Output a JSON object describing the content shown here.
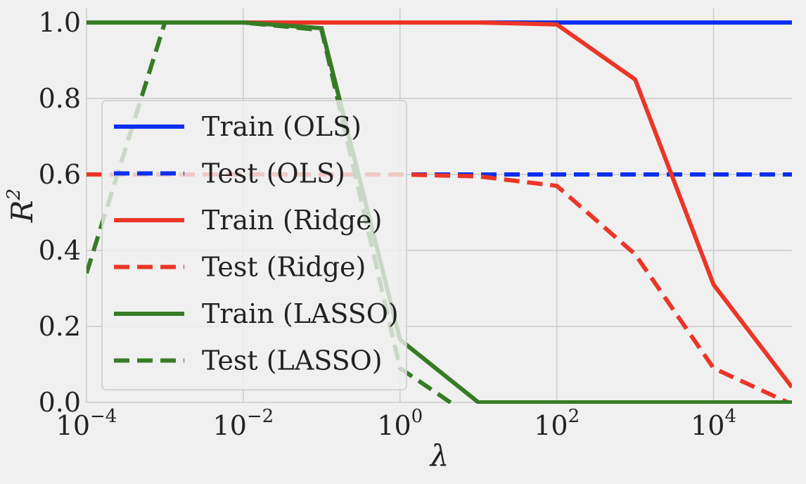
{
  "colors": {
    "background": "#f0f0f0",
    "grid": "#cbcbcb",
    "legend_bg": "#f0f0f0",
    "legend_border": "#cccccc"
  },
  "chart_data": {
    "type": "line",
    "xscale": "log",
    "xlabel": "λ",
    "ylabel": "R",
    "ylabel_superscript": "2",
    "xlim": [
      0.0001,
      100000
    ],
    "ylim": [
      0.0,
      1.0
    ],
    "grid": true,
    "legend_position": "center-left",
    "x_ticks": [
      {
        "value": 0.0001,
        "base": "10",
        "exp": "−4"
      },
      {
        "value": 0.01,
        "base": "10",
        "exp": "−2"
      },
      {
        "value": 1,
        "base": "10",
        "exp": "0"
      },
      {
        "value": 100,
        "base": "10",
        "exp": "2"
      },
      {
        "value": 10000,
        "base": "10",
        "exp": "4"
      }
    ],
    "y_ticks": [
      {
        "value": 0.0,
        "label": "0.0"
      },
      {
        "value": 0.2,
        "label": "0.2"
      },
      {
        "value": 0.4,
        "label": "0.4"
      },
      {
        "value": 0.6,
        "label": "0.6"
      },
      {
        "value": 0.8,
        "label": "0.8"
      },
      {
        "value": 1.0,
        "label": "1.0"
      }
    ],
    "x": [
      0.0001,
      0.001,
      0.01,
      0.1,
      1,
      10,
      100,
      1000,
      10000,
      100000
    ],
    "series": [
      {
        "name": "Train (OLS)",
        "color": "#0c2ff0",
        "dash": "solid",
        "values": [
          1.0,
          1.0,
          1.0,
          1.0,
          1.0,
          1.0,
          1.0,
          1.0,
          1.0,
          1.0
        ]
      },
      {
        "name": "Test (OLS)",
        "color": "#0c2ff0",
        "dash": "dashed",
        "values": [
          0.6,
          0.6,
          0.6,
          0.6,
          0.6,
          0.6,
          0.6,
          0.6,
          0.6,
          0.6
        ]
      },
      {
        "name": "Train (Ridge)",
        "color": "#ec3526",
        "dash": "solid",
        "values": [
          1.0,
          1.0,
          1.0,
          1.0,
          1.0,
          1.0,
          0.995,
          0.85,
          0.31,
          0.04
        ]
      },
      {
        "name": "Test (Ridge)",
        "color": "#ec3526",
        "dash": "dashed",
        "values": [
          0.6,
          0.6,
          0.6,
          0.6,
          0.6,
          0.595,
          0.57,
          0.39,
          0.09,
          -0.005
        ]
      },
      {
        "name": "Train (LASSO)",
        "color": "#367b25",
        "dash": "solid",
        "values": [
          1.0,
          1.0,
          1.0,
          0.985,
          0.165,
          0.0,
          0.0,
          0.0,
          0.0,
          0.0
        ]
      },
      {
        "name": "Test (LASSO)",
        "color": "#367b25",
        "dash": "dashed",
        "values": [
          0.34,
          1.0,
          1.0,
          0.98,
          0.09,
          -0.05,
          -0.05,
          -0.05,
          -0.05,
          -0.05
        ]
      }
    ]
  }
}
